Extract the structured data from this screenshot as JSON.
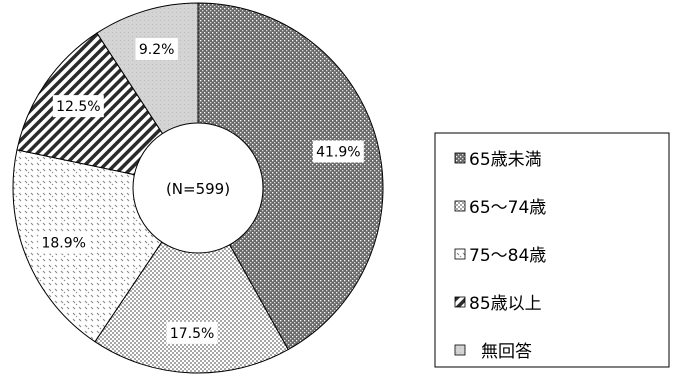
{
  "chart_data": {
    "type": "pie",
    "subtype": "donut",
    "center_label": "(N=599)",
    "categories": [
      "65歳未満",
      "65～74歳",
      "75～84歳",
      "85歳以上",
      "無回答"
    ],
    "values": [
      41.9,
      17.5,
      18.9,
      12.5,
      9.2
    ],
    "value_labels": [
      "41.9%",
      "17.5%",
      "18.9%",
      "12.5%",
      "9.2%"
    ],
    "legend": {
      "position": "right",
      "entries": [
        "65歳未満",
        "65～74歳",
        "75～84歳",
        "85歳以上",
        "無回答"
      ]
    },
    "start_angle_deg": 0,
    "direction": "clockwise"
  }
}
